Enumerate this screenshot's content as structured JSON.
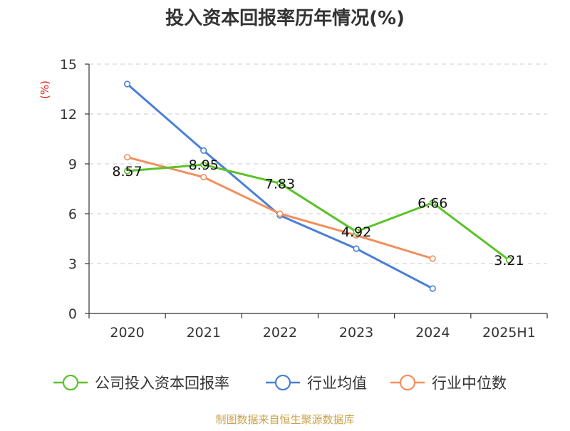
{
  "chart_data": {
    "type": "line",
    "title": "投入资本回报率历年情况(%)",
    "unit_label": "(%)",
    "categories": [
      "2020",
      "2021",
      "2022",
      "2023",
      "2024",
      "2025H1"
    ],
    "ylim": [
      0,
      15
    ],
    "yticks": [
      0,
      3,
      6,
      9,
      12,
      15
    ],
    "grid": true,
    "legend_position": "bottom",
    "series": [
      {
        "name": "公司投入资本回报率",
        "color": "#5ac229",
        "values": [
          8.57,
          8.95,
          7.83,
          4.92,
          6.66,
          3.21
        ],
        "value_labels": [
          "8.57",
          "8.95",
          "7.83",
          "4.92",
          "6.66",
          "3.21"
        ]
      },
      {
        "name": "行业均值",
        "color": "#4a7fd6",
        "values": [
          13.8,
          9.8,
          5.9,
          3.9,
          1.5,
          null
        ]
      },
      {
        "name": "行业中位数",
        "color": "#f28f5c",
        "values": [
          9.4,
          8.2,
          6.0,
          4.7,
          3.3,
          null
        ]
      }
    ]
  },
  "source": "制图数据来自恒生聚源数据库"
}
